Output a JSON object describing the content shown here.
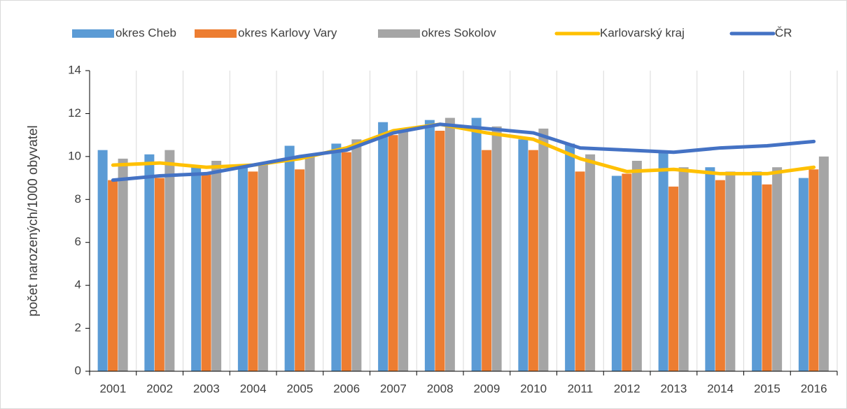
{
  "chart_data": {
    "type": "bar_line",
    "y_axis_label": "počet narozených/1000 obyvatel",
    "categories": [
      "2001",
      "2002",
      "2003",
      "2004",
      "2005",
      "2006",
      "2007",
      "2008",
      "2009",
      "2010",
      "2011",
      "2012",
      "2013",
      "2014",
      "2015",
      "2016"
    ],
    "series": [
      {
        "name": "okres Cheb",
        "kind": "bar",
        "color": "#5b9bd5",
        "values": [
          10.3,
          10.1,
          9.5,
          9.6,
          10.5,
          10.6,
          11.6,
          11.7,
          11.8,
          10.8,
          10.6,
          9.1,
          10.2,
          9.5,
          9.3,
          9.0
        ]
      },
      {
        "name": "okres Karlovy Vary",
        "kind": "bar",
        "color": "#ed7d31",
        "values": [
          8.9,
          9.0,
          9.2,
          9.3,
          9.4,
          10.2,
          11.0,
          11.2,
          10.3,
          10.3,
          9.3,
          9.2,
          8.6,
          8.9,
          8.7,
          9.4
        ]
      },
      {
        "name": "okres Sokolov",
        "kind": "bar",
        "color": "#a5a5a5",
        "values": [
          9.9,
          10.3,
          9.8,
          9.7,
          10.0,
          10.8,
          11.2,
          11.8,
          11.4,
          11.3,
          10.1,
          9.8,
          9.5,
          9.3,
          9.5,
          10.0
        ]
      },
      {
        "name": "Karlovarský kraj",
        "kind": "line",
        "color": "#ffc000",
        "values": [
          9.6,
          9.7,
          9.5,
          9.6,
          9.9,
          10.4,
          11.2,
          11.5,
          11.1,
          10.8,
          9.9,
          9.3,
          9.4,
          9.2,
          9.2,
          9.5
        ]
      },
      {
        "name": "ČR",
        "kind": "line",
        "color": "#4472c4",
        "values": [
          8.9,
          9.1,
          9.2,
          9.6,
          10.0,
          10.3,
          11.1,
          11.5,
          11.3,
          11.1,
          10.4,
          10.3,
          10.2,
          10.4,
          10.5,
          10.7
        ]
      }
    ],
    "ylim": [
      0,
      14
    ],
    "yticks": [
      0,
      2,
      4,
      6,
      8,
      10,
      12,
      14
    ],
    "grid": true,
    "legend": "top"
  }
}
